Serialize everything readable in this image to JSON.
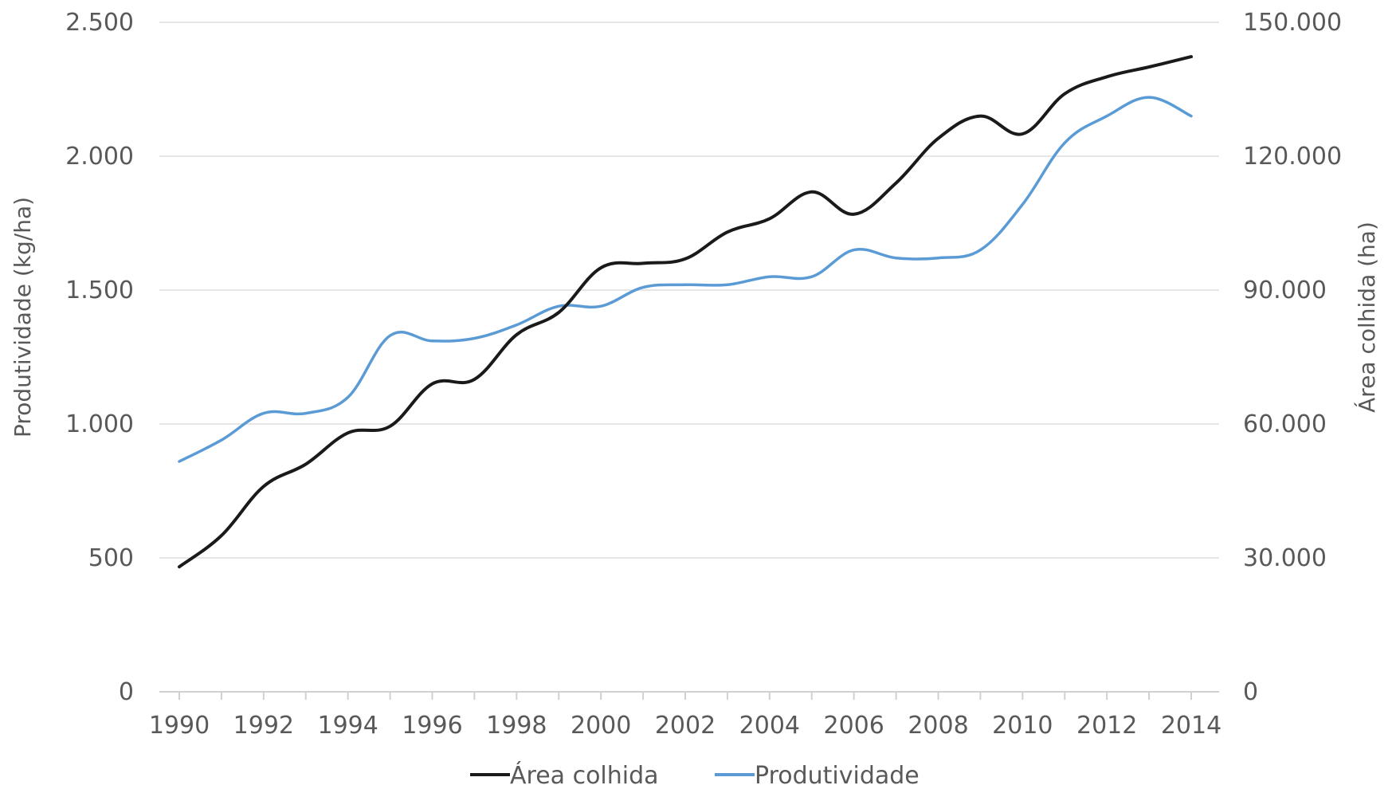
{
  "chart_data": {
    "type": "line",
    "title": "",
    "x": [
      1990,
      1991,
      1992,
      1993,
      1994,
      1995,
      1996,
      1997,
      1998,
      1999,
      2000,
      2001,
      2002,
      2003,
      2004,
      2005,
      2006,
      2007,
      2008,
      2009,
      2010,
      2011,
      2012,
      2013,
      2014
    ],
    "x_tick_labels": [
      "1990",
      "1992",
      "1994",
      "1996",
      "1998",
      "2000",
      "2002",
      "2004",
      "2006",
      "2008",
      "2010",
      "2012",
      "2014"
    ],
    "xlabel": "",
    "y_left": {
      "label": "Produtividade (kg/ha)",
      "range": [
        0,
        2500
      ],
      "ticks": [
        0,
        500,
        1000,
        1500,
        2000,
        2500
      ],
      "tick_labels": [
        "0",
        "500",
        "1.000",
        "1.500",
        "2.000",
        "2.500"
      ]
    },
    "y_right": {
      "label": "Área colhida (ha)",
      "range": [
        0,
        150000
      ],
      "ticks": [
        0,
        30000,
        60000,
        90000,
        120000,
        150000
      ],
      "tick_labels": [
        "0",
        "30.000",
        "60.000",
        "90.000",
        "120.000",
        "150.000"
      ]
    },
    "series": [
      {
        "name": "Área colhida",
        "axis": "right",
        "color": "#1a1a1a",
        "values": [
          28000,
          35000,
          46000,
          51000,
          58000,
          59500,
          69000,
          70000,
          80000,
          85000,
          95000,
          96000,
          97000,
          103000,
          106000,
          112000,
          107000,
          114000,
          124000,
          129000,
          125000,
          134000,
          137800,
          140000,
          142300
        ]
      },
      {
        "name": "Produtividade",
        "axis": "left",
        "color": "#5b9bd5",
        "values": [
          860,
          940,
          1040,
          1040,
          1100,
          1330,
          1310,
          1320,
          1370,
          1440,
          1440,
          1510,
          1520,
          1520,
          1550,
          1550,
          1650,
          1620,
          1620,
          1650,
          1820,
          2050,
          2150,
          2220,
          2150
        ]
      }
    ],
    "grid": "horizontal",
    "legend_position": "bottom"
  }
}
